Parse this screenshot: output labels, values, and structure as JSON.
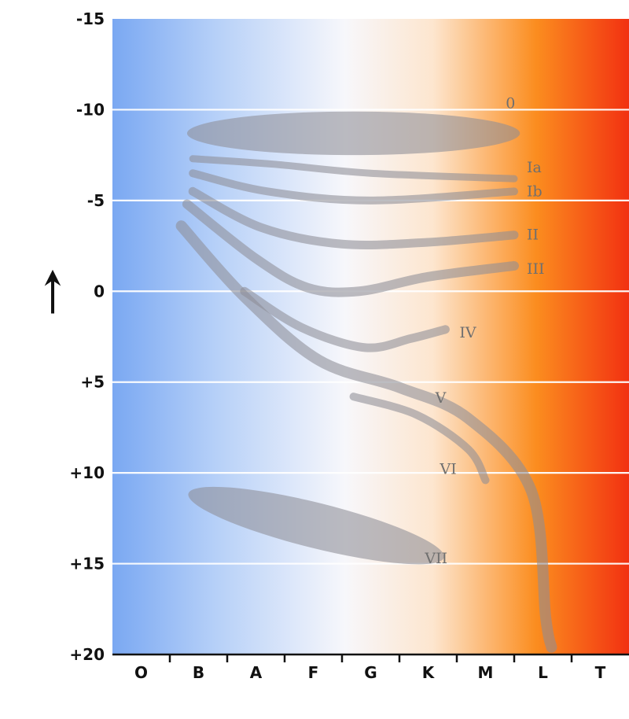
{
  "chart_data": {
    "type": "scatter",
    "title": "",
    "xlabel": "",
    "ylabel": "",
    "y_axis_arrow": "↑",
    "x_categories": [
      "O",
      "B",
      "A",
      "F",
      "G",
      "K",
      "M",
      "L",
      "T"
    ],
    "y_ticks": [
      "-15",
      "-10",
      "-5",
      "0",
      "+5",
      "+10",
      "+15",
      "+20"
    ],
    "ylim": [
      -15,
      20
    ],
    "y_inverted": true,
    "grid": true,
    "background_gradient": [
      "#7aa8f2",
      "#b6d0f8",
      "#f7f7fb",
      "#fde6cf",
      "#fb8d1f",
      "#f23111"
    ],
    "band_color": "#8e8e96",
    "luminosity_classes": [
      {
        "label": "0",
        "shape": "region",
        "x": [
          1.3,
          7.1
        ],
        "y_center": -8.7,
        "y_halfwidth": 1.2
      },
      {
        "label": "Ia",
        "shape": "band",
        "points": [
          [
            1.4,
            -7.3
          ],
          [
            2.8,
            -7.0
          ],
          [
            4.5,
            -6.5
          ],
          [
            7.0,
            -6.2
          ]
        ]
      },
      {
        "label": "Ib",
        "shape": "band",
        "points": [
          [
            1.4,
            -6.5
          ],
          [
            2.7,
            -5.5
          ],
          [
            4.5,
            -5.0
          ],
          [
            7.0,
            -5.5
          ]
        ]
      },
      {
        "label": "II",
        "shape": "band",
        "points": [
          [
            1.4,
            -5.5
          ],
          [
            2.6,
            -3.5
          ],
          [
            4.0,
            -2.6
          ],
          [
            5.5,
            -2.7
          ],
          [
            7.0,
            -3.1
          ]
        ]
      },
      {
        "label": "III",
        "shape": "band",
        "points": [
          [
            1.3,
            -4.8
          ],
          [
            2.5,
            -1.8
          ],
          [
            3.4,
            -0.2
          ],
          [
            4.3,
            0.0
          ],
          [
            5.5,
            -0.8
          ],
          [
            7.0,
            -1.4
          ]
        ]
      },
      {
        "label": "IV",
        "shape": "band",
        "points": [
          [
            2.3,
            0.0
          ],
          [
            3.3,
            2.0
          ],
          [
            4.4,
            3.1
          ],
          [
            5.2,
            2.6
          ],
          [
            5.8,
            2.1
          ]
        ]
      },
      {
        "label": "V",
        "shape": "band",
        "points": [
          [
            1.2,
            -3.6
          ],
          [
            2.3,
            0.3
          ],
          [
            3.6,
            3.8
          ],
          [
            5.0,
            5.3
          ],
          [
            6.2,
            7.0
          ],
          [
            7.3,
            11.0
          ],
          [
            7.55,
            18.0
          ],
          [
            7.65,
            19.6
          ]
        ]
      },
      {
        "label": "VI",
        "shape": "band",
        "points": [
          [
            4.2,
            5.8
          ],
          [
            5.3,
            6.8
          ],
          [
            6.2,
            8.7
          ],
          [
            6.5,
            10.4
          ]
        ]
      },
      {
        "label": "VII",
        "shape": "region",
        "x": [
          1.3,
          5.8
        ],
        "y_center": 12.9,
        "y_halfwidth": 1.6
      }
    ]
  }
}
